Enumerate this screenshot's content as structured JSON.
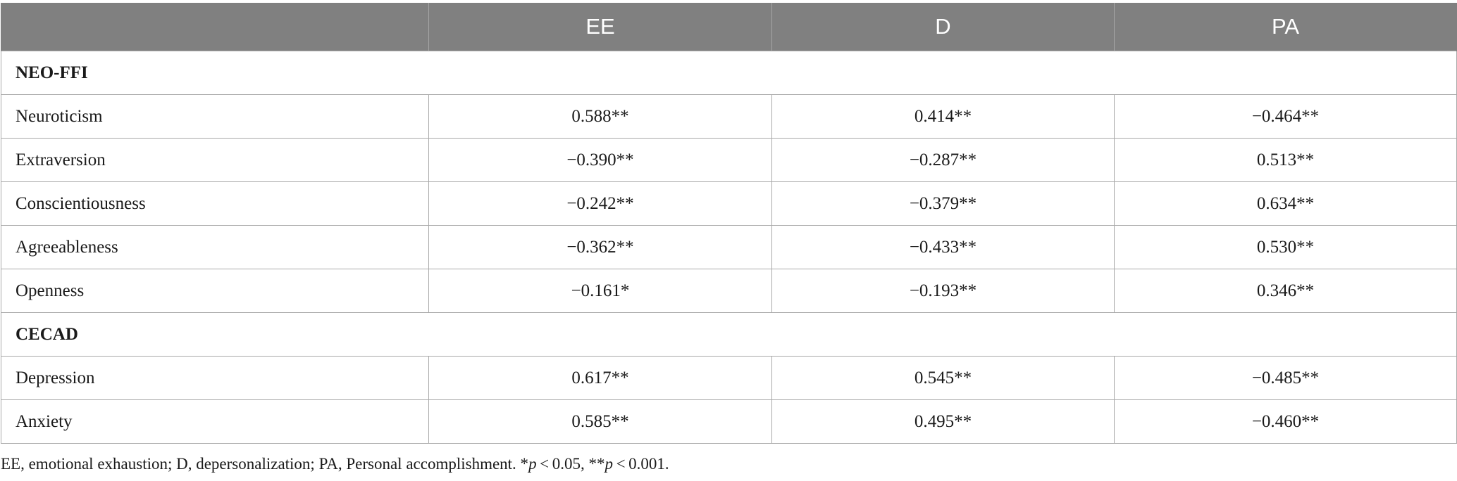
{
  "table": {
    "columns": [
      "",
      "EE",
      "D",
      "PA"
    ],
    "sections": [
      {
        "title": "NEO-FFI",
        "rows": [
          {
            "label": "Neuroticism",
            "values": [
              "0.588**",
              "0.414**",
              "−0.464**"
            ]
          },
          {
            "label": "Extraversion",
            "values": [
              "−0.390**",
              "−0.287**",
              "0.513**"
            ]
          },
          {
            "label": "Conscientiousness",
            "values": [
              "−0.242**",
              "−0.379**",
              "0.634**"
            ]
          },
          {
            "label": "Agreeableness",
            "values": [
              "−0.362**",
              "−0.433**",
              "0.530**"
            ]
          },
          {
            "label": "Openness",
            "values": [
              "−0.161*",
              "−0.193**",
              "0.346**"
            ]
          }
        ]
      },
      {
        "title": "CECAD",
        "rows": [
          {
            "label": "Depression",
            "values": [
              "0.617**",
              "0.545**",
              "−0.485**"
            ]
          },
          {
            "label": "Anxiety",
            "values": [
              "0.585**",
              "0.495**",
              "−0.460**"
            ]
          }
        ]
      }
    ]
  },
  "footnote": {
    "text": "EE, emotional exhaustion; D, depersonalization; PA, Personal accomplishment. *",
    "p1_var": "p",
    "p1_rest": " < 0.05, **",
    "p2_var": "p",
    "p2_rest": " < 0.001."
  }
}
